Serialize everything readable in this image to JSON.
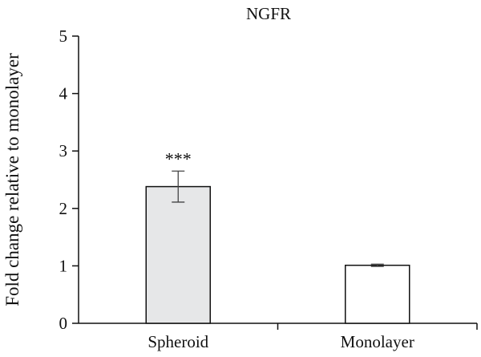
{
  "chart_data": {
    "type": "bar",
    "title": "NGFR",
    "xlabel": "",
    "ylabel": "Fold change relative to monolayer",
    "categories": [
      "Spheroid",
      "Monolayer"
    ],
    "values": [
      2.38,
      1.01
    ],
    "errors": [
      0.27,
      0.02
    ],
    "annotations": [
      "***",
      ""
    ],
    "bar_colors": [
      "#e6e7e8",
      "#ffffff"
    ],
    "ylim": [
      0,
      5
    ],
    "yticks": [
      0,
      1,
      2,
      3,
      4,
      5
    ],
    "ytick_labels": [
      "0",
      "1",
      "2",
      "3",
      "4",
      "5"
    ],
    "grid": false,
    "legend": "none"
  }
}
